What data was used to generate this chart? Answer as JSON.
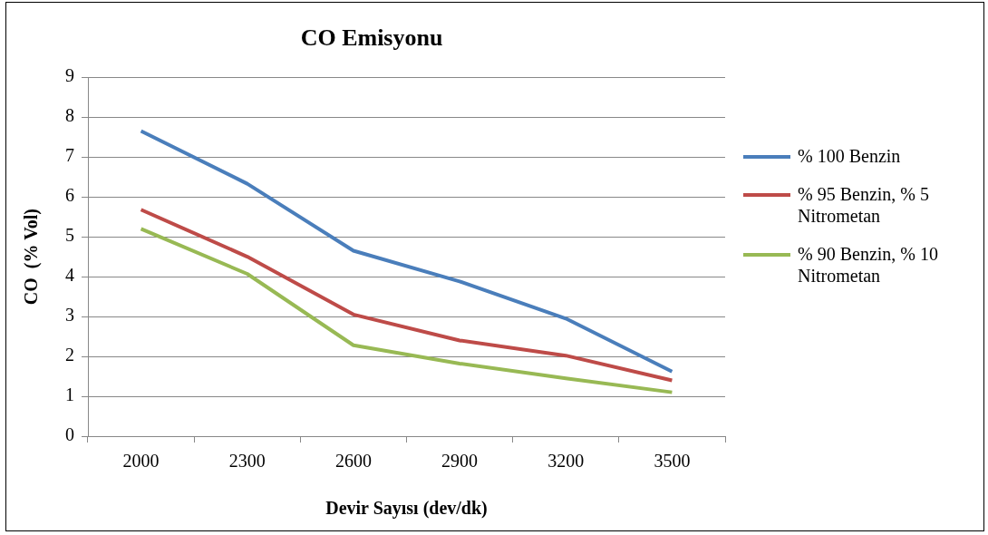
{
  "chart_data": {
    "type": "line",
    "title": "CO Emisyonu",
    "xlabel": "Devir Sayısı (dev/dk)",
    "ylabel": "CO  (% Vol)",
    "categories": [
      "2000",
      "2300",
      "2600",
      "2900",
      "3200",
      "3500"
    ],
    "series": [
      {
        "name": "% 100 Benzin",
        "color": "#4a7ebb",
        "values": [
          7.65,
          6.33,
          4.65,
          3.88,
          2.95,
          1.62
        ]
      },
      {
        "name": "% 95 Benzin, % 5 Nitrometan",
        "color": "#be4b48",
        "values": [
          5.68,
          4.5,
          3.05,
          2.4,
          2.02,
          1.4
        ]
      },
      {
        "name": "% 90 Benzin, % 10 Nitrometan",
        "color": "#98b954",
        "values": [
          5.2,
          4.07,
          2.28,
          1.82,
          1.45,
          1.1
        ]
      }
    ],
    "ylim": [
      0,
      9
    ],
    "yticks": [
      0,
      1,
      2,
      3,
      4,
      5,
      6,
      7,
      8,
      9
    ],
    "grid": "y",
    "legend": "right",
    "marker": "none",
    "line_style": "solid"
  }
}
